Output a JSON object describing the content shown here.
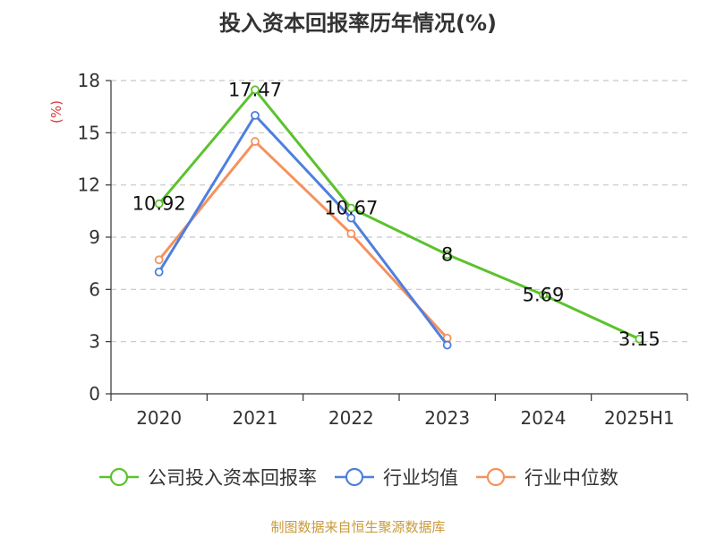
{
  "title": "投入资本回报率历年情况(%)",
  "source": "制图数据来自恒生聚源数据库",
  "chart_data": {
    "type": "line",
    "categories": [
      "2020",
      "2021",
      "2022",
      "2023",
      "2024",
      "2025H1"
    ],
    "ylabel": "(%)",
    "ylim": [
      0,
      18
    ],
    "yticks": [
      0,
      3,
      6,
      9,
      12,
      15,
      18
    ],
    "grid": true,
    "legend_position": "bottom",
    "series": [
      {
        "name": "公司投入资本回报率",
        "color": "#5cc22e",
        "values": [
          10.92,
          17.47,
          10.67,
          8,
          5.69,
          3.15
        ],
        "labels": [
          "10.92",
          "17.47",
          "10.67",
          "8",
          "5.69",
          "3.15"
        ]
      },
      {
        "name": "行业均值",
        "color": "#4f7fdd",
        "values": [
          7.0,
          16.0,
          10.1,
          2.8,
          null,
          null
        ]
      },
      {
        "name": "行业中位数",
        "color": "#f5925e",
        "values": [
          7.7,
          14.5,
          9.2,
          3.2,
          null,
          null
        ]
      }
    ]
  }
}
